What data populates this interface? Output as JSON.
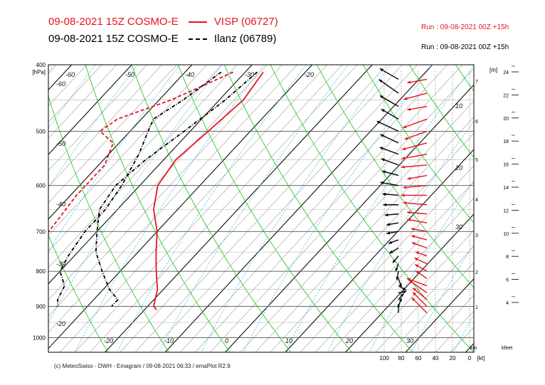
{
  "header": {
    "line1_run": "09-08-2021 15Z COSMO-E",
    "line1_station": "VISP (06727)",
    "line1_run_info": "Run : 09-08-2021 00Z +15h",
    "line2_run": "09-08-2021 15Z COSMO-E",
    "line2_station": "Ilanz (06789)",
    "line2_run_info": "Run : 09-08-2021 00Z +15h"
  },
  "footer": {
    "copyright": "(c) MeteoSwiss - DWH - Emagram / 09-08-2021 06:33 / emaPlot R2.9"
  },
  "colors": {
    "visp": "#e8141e",
    "ilanz": "#000000",
    "dry_adiabat": "#2ec92e",
    "mixing_ratio": "#4fc3e6",
    "isotherm": "#000000"
  },
  "chart_data": {
    "type": "emagram",
    "y_unit_label": "[hPa]",
    "pressure_ticks": [
      400,
      500,
      600,
      700,
      800,
      900,
      1000
    ],
    "temperature_labels_top": [
      -60,
      -50,
      -40,
      -30,
      -20
    ],
    "temperature_labels_bottom": [
      -20,
      -10,
      0,
      10,
      20,
      30
    ],
    "temperature_labels_left": [
      -60,
      -50,
      -40,
      -30,
      -20
    ],
    "isotherm_labels_right": [
      10,
      20,
      30
    ],
    "km_axis_label": "[m]",
    "km_bottom_label": "km",
    "km_ticks": [
      1,
      2,
      3,
      4,
      5,
      6,
      7
    ],
    "kfeet_label": "kfeet",
    "kfeet_ticks": [
      4,
      6,
      8,
      10,
      12,
      14,
      16,
      18,
      20,
      22,
      24
    ],
    "wind_speed_axis_label": "[kt]",
    "wind_speed_ticks": [
      100,
      80,
      60,
      40,
      20,
      0
    ],
    "series": [
      {
        "name": "VISP (06727)",
        "temperature": [
          [
            410,
            -27
          ],
          [
            450,
            -26
          ],
          [
            500,
            -27
          ],
          [
            550,
            -28
          ],
          [
            600,
            -27
          ],
          [
            650,
            -24
          ],
          [
            700,
            -20
          ],
          [
            750,
            -17
          ],
          [
            800,
            -14
          ],
          [
            850,
            -11
          ],
          [
            900,
            -9
          ],
          [
            910,
            -8
          ]
        ],
        "dewpoint": [
          [
            410,
            -32
          ],
          [
            450,
            -38
          ],
          [
            480,
            -44
          ],
          [
            500,
            -45
          ],
          [
            520,
            -41
          ],
          [
            560,
            -39
          ],
          [
            620,
            -39
          ],
          [
            700,
            -38
          ],
          [
            780,
            -37
          ],
          [
            820,
            -35
          ],
          [
            860,
            -30
          ],
          [
            900,
            -28
          ]
        ],
        "wind": [
          [
            420,
            80,
            20
          ],
          [
            440,
            75,
            25
          ],
          [
            460,
            80,
            20
          ],
          [
            480,
            70,
            30
          ],
          [
            500,
            70,
            25
          ],
          [
            520,
            75,
            30
          ],
          [
            540,
            80,
            35
          ],
          [
            560,
            85,
            30
          ],
          [
            580,
            80,
            20
          ],
          [
            600,
            85,
            25
          ],
          [
            620,
            90,
            30
          ],
          [
            640,
            95,
            25
          ],
          [
            660,
            95,
            20
          ],
          [
            680,
            100,
            20
          ],
          [
            700,
            100,
            15
          ],
          [
            720,
            105,
            15
          ],
          [
            740,
            110,
            15
          ],
          [
            760,
            110,
            10
          ],
          [
            780,
            115,
            12
          ],
          [
            800,
            120,
            12
          ],
          [
            820,
            125,
            12
          ],
          [
            840,
            110,
            22
          ],
          [
            860,
            125,
            22
          ],
          [
            880,
            130,
            18
          ],
          [
            900,
            135,
            20
          ],
          [
            920,
            135,
            22
          ]
        ]
      },
      {
        "name": "Ilanz (06789)",
        "temperature": [
          [
            410,
            -28
          ],
          [
            450,
            -29
          ],
          [
            500,
            -31
          ],
          [
            550,
            -33
          ],
          [
            600,
            -34
          ],
          [
            650,
            -33
          ],
          [
            700,
            -30
          ],
          [
            750,
            -27
          ],
          [
            800,
            -23
          ],
          [
            850,
            -19
          ],
          [
            880,
            -16
          ],
          [
            900,
            -16
          ]
        ],
        "dewpoint": [
          [
            410,
            -34
          ],
          [
            450,
            -36
          ],
          [
            480,
            -38
          ],
          [
            500,
            -37
          ],
          [
            540,
            -35
          ],
          [
            600,
            -33
          ],
          [
            650,
            -32
          ],
          [
            700,
            -32
          ],
          [
            760,
            -31
          ],
          [
            800,
            -30
          ],
          [
            840,
            -27
          ],
          [
            880,
            -26
          ],
          [
            900,
            -25
          ]
        ],
        "wind": [
          [
            420,
            120,
            22
          ],
          [
            440,
            125,
            25
          ],
          [
            460,
            120,
            22
          ],
          [
            480,
            120,
            20
          ],
          [
            500,
            115,
            25
          ],
          [
            520,
            115,
            20
          ],
          [
            540,
            110,
            20
          ],
          [
            560,
            110,
            18
          ],
          [
            580,
            105,
            16
          ],
          [
            600,
            100,
            18
          ],
          [
            620,
            95,
            15
          ],
          [
            640,
            90,
            14
          ],
          [
            660,
            85,
            12
          ],
          [
            680,
            80,
            10
          ],
          [
            700,
            80,
            10
          ],
          [
            720,
            70,
            8
          ],
          [
            740,
            60,
            8
          ],
          [
            760,
            40,
            6
          ],
          [
            780,
            20,
            5
          ],
          [
            800,
            10,
            6
          ],
          [
            820,
            340,
            6
          ],
          [
            840,
            300,
            6
          ],
          [
            860,
            260,
            5
          ],
          [
            880,
            220,
            5
          ],
          [
            900,
            200,
            6
          ],
          [
            920,
            180,
            6
          ]
        ]
      }
    ]
  }
}
